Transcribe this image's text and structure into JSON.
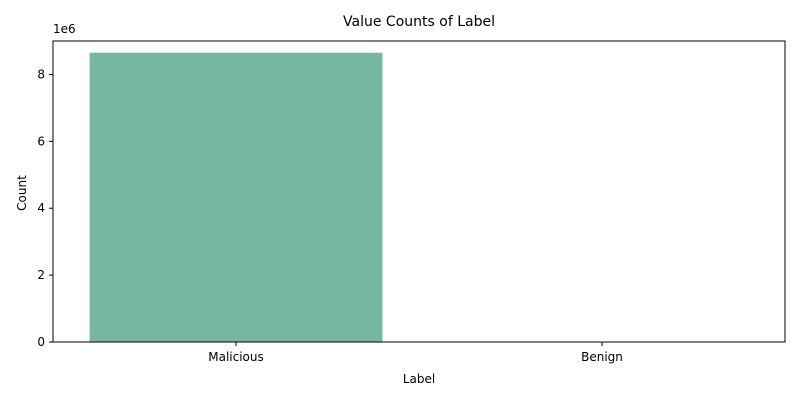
{
  "chart_data": {
    "type": "bar",
    "title": "Value Counts of Label",
    "xlabel": "Label",
    "ylabel": "Count",
    "categories": [
      "Malicious",
      "Benign"
    ],
    "values": [
      8650000,
      2000
    ],
    "ylim": [
      0,
      9000000
    ],
    "yticks": [
      0,
      2000000,
      4000000,
      6000000,
      8000000
    ],
    "ytick_labels": [
      "0",
      "2",
      "4",
      "6",
      "8"
    ],
    "y_offset_label": "1e6",
    "colors": [
      "#75b7a1",
      "#fc8d62"
    ],
    "grid": false,
    "legend": "none"
  }
}
